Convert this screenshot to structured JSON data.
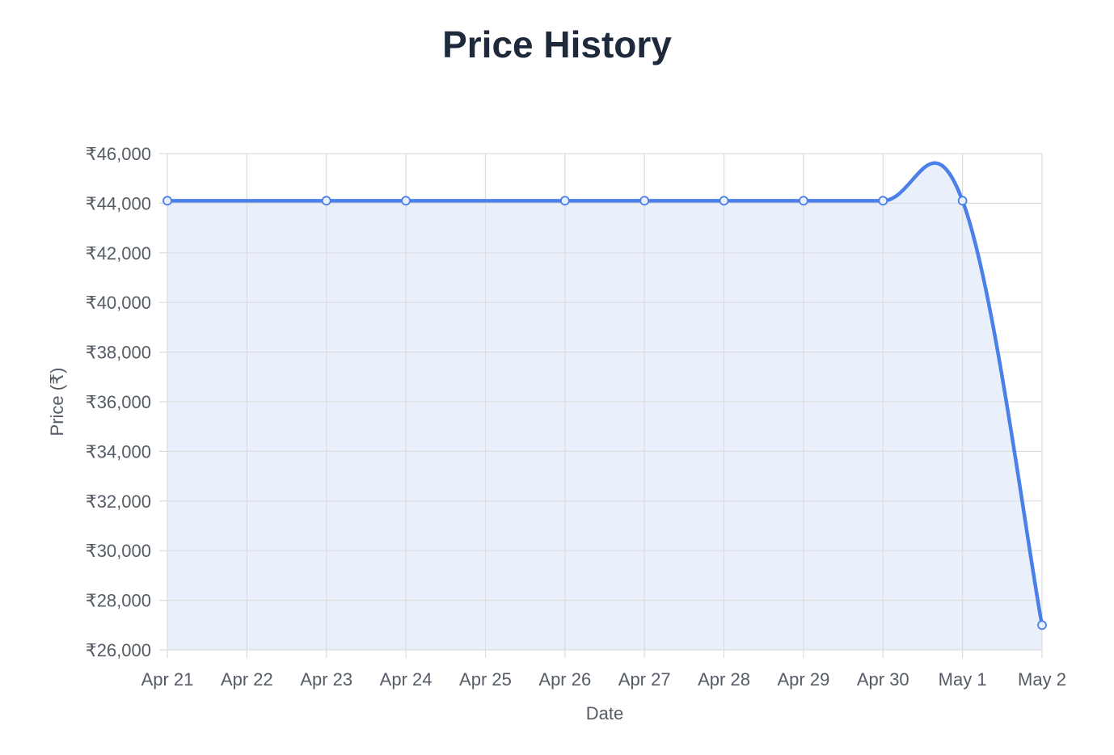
{
  "chart_data": {
    "type": "line",
    "title": "Price History",
    "xlabel": "Date",
    "ylabel": "Price (₹)",
    "categories": [
      "Apr 21",
      "Apr 22",
      "Apr 23",
      "Apr 24",
      "Apr 25",
      "Apr 26",
      "Apr 27",
      "Apr 28",
      "Apr 29",
      "Apr 30",
      "May 1",
      "May 2"
    ],
    "ylim": [
      26000,
      46000
    ],
    "yticks": [
      26000,
      28000,
      30000,
      32000,
      34000,
      36000,
      38000,
      40000,
      42000,
      44000,
      46000
    ],
    "ytick_labels": [
      "₹26,000",
      "₹28,000",
      "₹30,000",
      "₹32,000",
      "₹34,000",
      "₹36,000",
      "₹38,000",
      "₹40,000",
      "₹42,000",
      "₹44,000",
      "₹46,000"
    ],
    "grid": true,
    "series": [
      {
        "points": [
          {
            "x": "Apr 21",
            "y": 44100
          },
          {
            "x": "Apr 23",
            "y": 44100
          },
          {
            "x": "Apr 24",
            "y": 44100
          },
          {
            "x": "Apr 26",
            "y": 44100
          },
          {
            "x": "Apr 27",
            "y": 44100
          },
          {
            "x": "Apr 28",
            "y": 44100
          },
          {
            "x": "Apr 29",
            "y": 44100
          },
          {
            "x": "Apr 30",
            "y": 44100
          },
          {
            "x": "May 1",
            "y": 44100
          },
          {
            "x": "May 2",
            "y": 27000
          }
        ],
        "color": "#4a80e8",
        "fill_color": "#eaf0fb"
      }
    ]
  }
}
